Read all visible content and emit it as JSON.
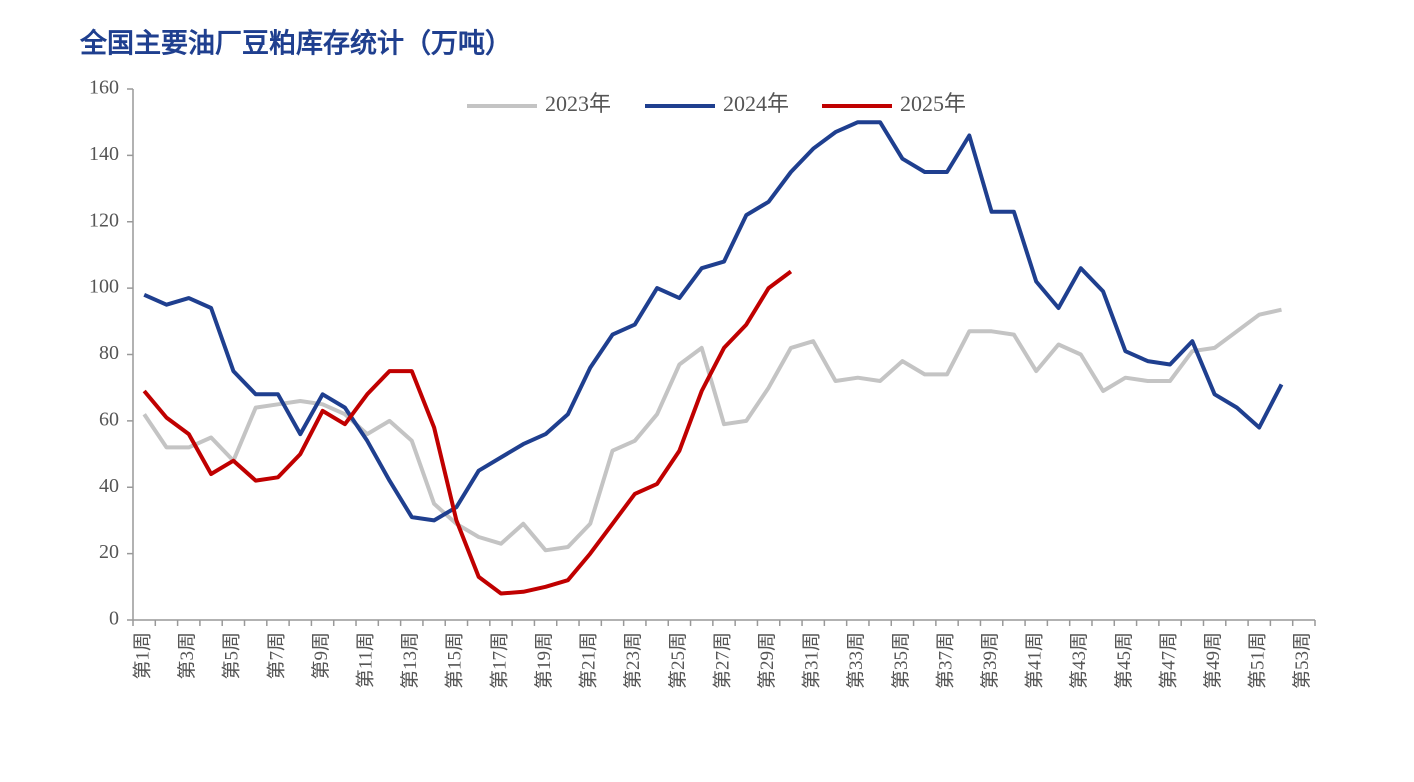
{
  "chart_data": {
    "type": "line",
    "title": "全国主要油厂豆粕库存统计（万吨）",
    "categories": [
      "第1周",
      null,
      "第3周",
      null,
      "第5周",
      null,
      "第7周",
      null,
      "第9周",
      null,
      "第11周",
      null,
      "第13周",
      null,
      "第15周",
      null,
      "第17周",
      null,
      "第19周",
      null,
      "第21周",
      null,
      "第23周",
      null,
      "第25周",
      null,
      "第27周",
      null,
      "第29周",
      null,
      "第31周",
      null,
      "第33周",
      null,
      "第35周",
      null,
      "第37周",
      null,
      "第39周",
      null,
      "第41周",
      null,
      "第43周",
      null,
      "第45周",
      null,
      "第47周",
      null,
      "第49周",
      null,
      "第51周",
      null,
      "第53周"
    ],
    "series": [
      {
        "name": "2023年",
        "color": "#c4c4c4",
        "values": [
          62,
          52,
          52,
          55,
          48,
          64,
          65,
          66,
          65,
          62,
          56,
          60,
          54,
          35,
          29,
          25,
          23,
          29,
          21,
          22,
          29,
          51,
          54,
          62,
          77,
          82,
          59,
          60,
          70,
          82,
          84,
          72,
          73,
          72,
          78,
          74,
          74,
          87,
          87,
          86,
          75,
          83,
          80,
          69,
          73,
          72,
          72,
          81,
          82,
          87,
          92,
          93.5,
          null
        ]
      },
      {
        "name": "2024年",
        "color": "#1f3f8f",
        "values": [
          98,
          95,
          97,
          94,
          75,
          68,
          68,
          56,
          68,
          64,
          54,
          42,
          31,
          30,
          34,
          45,
          49,
          53,
          56,
          62,
          76,
          86,
          89,
          100,
          97,
          106,
          108,
          122,
          126,
          135,
          142,
          147,
          150,
          150,
          139,
          135,
          135,
          146,
          123,
          123,
          102,
          94,
          106,
          99,
          81,
          78,
          77,
          84,
          68,
          64,
          58,
          71,
          null
        ]
      },
      {
        "name": "2025年",
        "color": "#c00000",
        "values": [
          69,
          61,
          56,
          44,
          48,
          42,
          43,
          50,
          63,
          59,
          68,
          75,
          75,
          58,
          30,
          13,
          8,
          8.5,
          10,
          12,
          20,
          29,
          38,
          41,
          51,
          69,
          82,
          89,
          100,
          105,
          null,
          null,
          null,
          null,
          null,
          null,
          null,
          null,
          null,
          null,
          null,
          null,
          null,
          null,
          null,
          null,
          null,
          null,
          null,
          null,
          null,
          null,
          null
        ]
      }
    ],
    "ylim": [
      0,
      160
    ],
    "yticks": [
      0,
      20,
      40,
      60,
      80,
      100,
      120,
      140,
      160
    ]
  }
}
